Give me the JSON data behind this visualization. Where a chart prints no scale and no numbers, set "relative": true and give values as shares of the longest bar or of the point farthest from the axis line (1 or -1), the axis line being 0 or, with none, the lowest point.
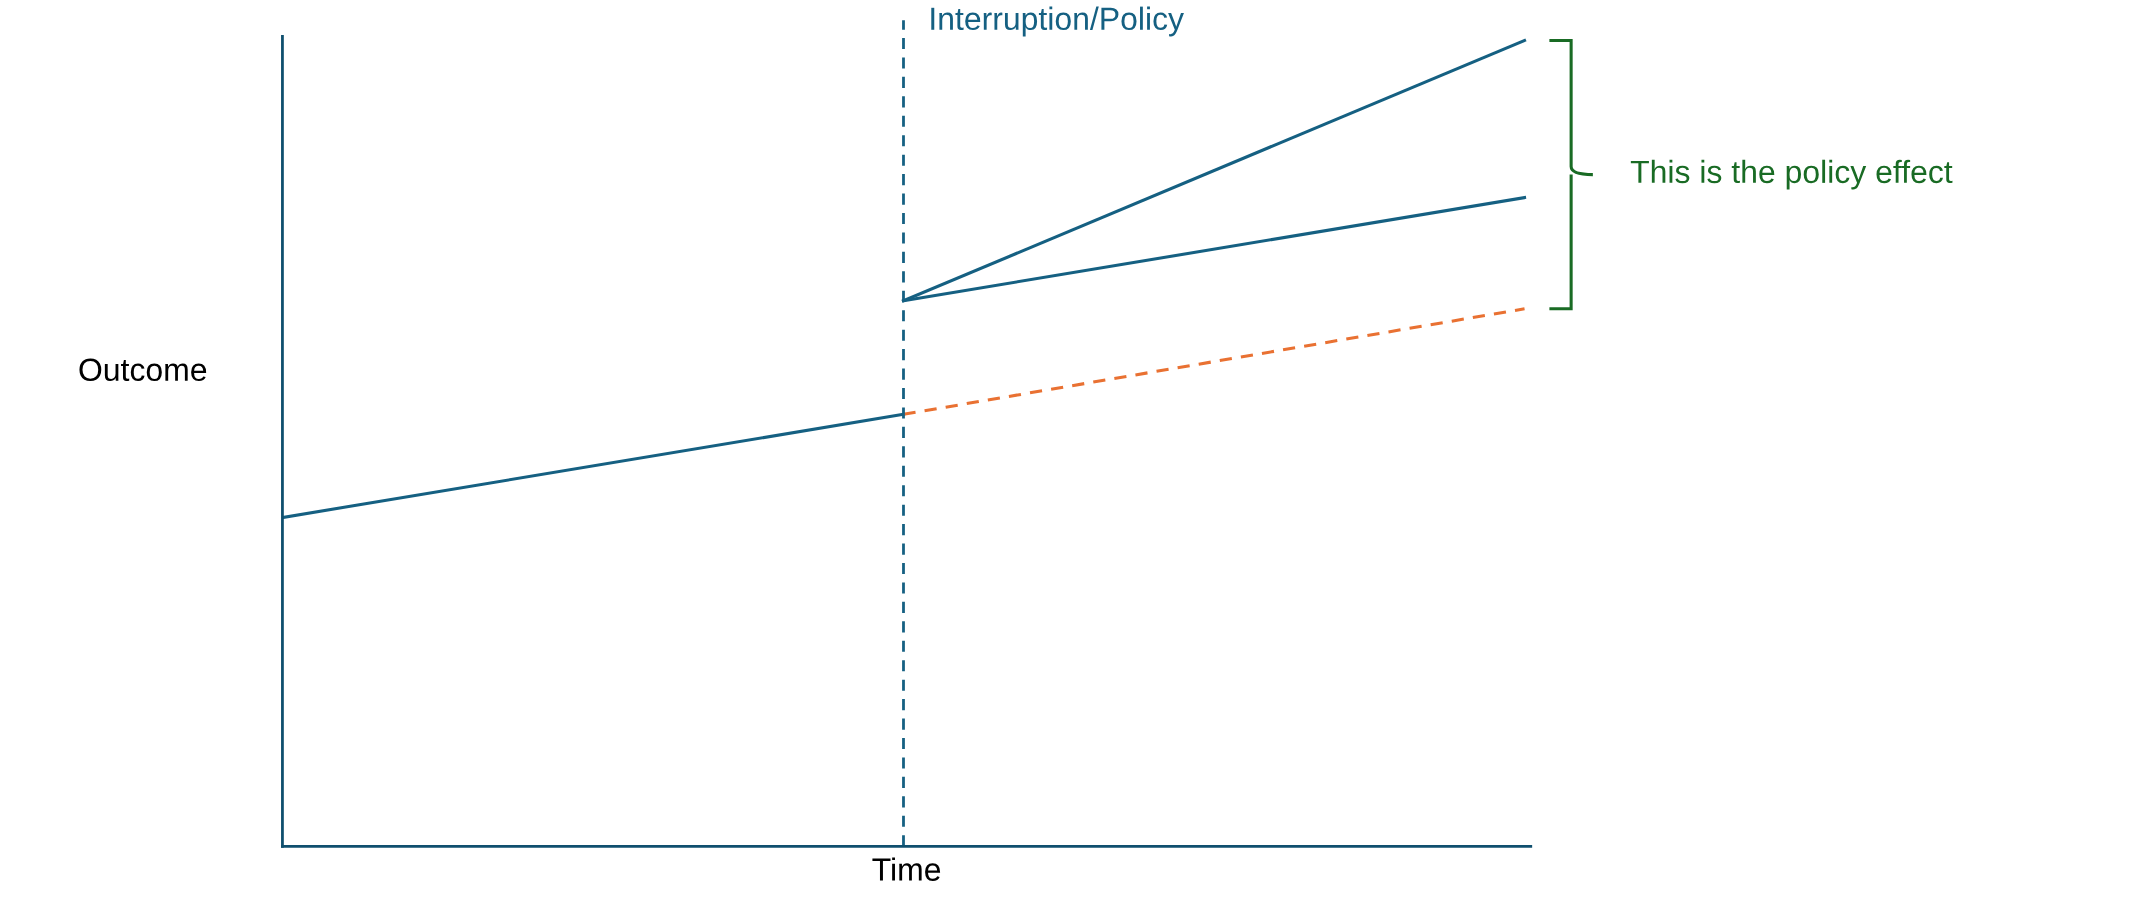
{
  "chart_data": {
    "type": "line",
    "relative": true,
    "xlabel": "Time",
    "ylabel": "Outcome",
    "categories": [
      null,
      null,
      null
    ],
    "series": [
      {
        "color": "#156082",
        "values": [
          0.408,
          0.536,
          null
        ],
        "line_style": "solid"
      },
      {
        "color": "#e97132",
        "values": [
          null,
          0.536,
          0.667
        ],
        "line_style": "dashed"
      },
      {
        "color": "#156082",
        "values": [
          null,
          0.677,
          0.805
        ],
        "line_style": "solid"
      },
      {
        "color": "#156082",
        "values": [
          null,
          0.677,
          1.0
        ],
        "line_style": "solid"
      }
    ],
    "annotations": [
      "Interruption/Policy",
      "This is the policy effect"
    ],
    "tick_labels": false,
    "legend": false,
    "marker": "none"
  }
}
